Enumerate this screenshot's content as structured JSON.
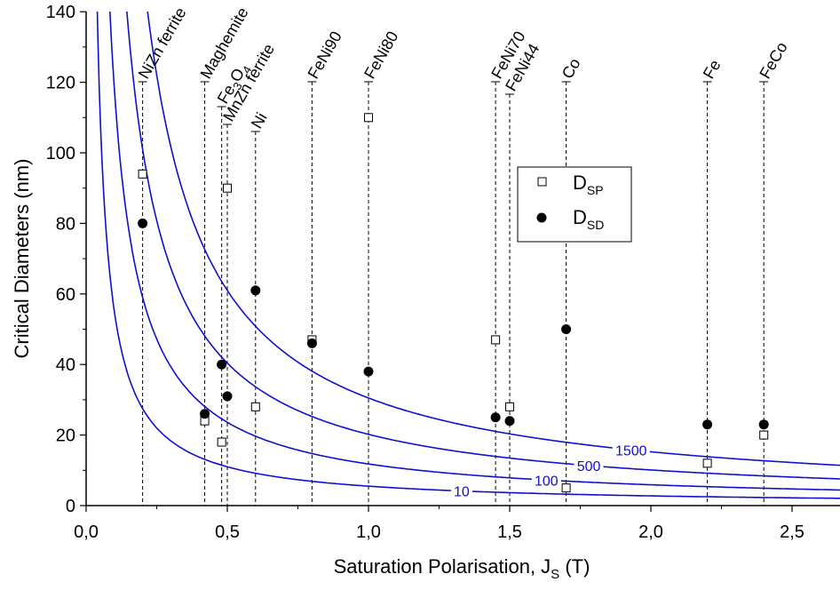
{
  "chart_data": {
    "type": "scatter",
    "xlabel": "Saturation Polarisation, J",
    "xlabel_sub": "S",
    "xlabel_unit": "(T)",
    "ylabel": "Critical Diameters (nm)",
    "xlim": [
      0.0,
      2.8
    ],
    "ylim": [
      0,
      140
    ],
    "xticks": [
      0.0,
      0.5,
      1.0,
      1.5,
      2.0,
      2.5
    ],
    "xtick_labels": [
      "0,0",
      "0,5",
      "1,0",
      "1,5",
      "2,0",
      "2,5"
    ],
    "yticks": [
      0,
      20,
      40,
      60,
      80,
      100,
      120,
      140
    ],
    "ytick_labels": [
      "0",
      "20",
      "40",
      "60",
      "80",
      "100",
      "120",
      "140"
    ],
    "legend_position": "upper-middle-right",
    "materials": [
      {
        "name": "NiZn ferrite",
        "js": 0.2
      },
      {
        "name": "Maghemite",
        "js": 0.42
      },
      {
        "name": "Fe3O4",
        "js": 0.48
      },
      {
        "name": "MnZn ferrite",
        "js": 0.5
      },
      {
        "name": "Ni",
        "js": 0.6
      },
      {
        "name": "FeNi90",
        "js": 0.8
      },
      {
        "name": "FeNi80",
        "js": 1.0
      },
      {
        "name": "FeNi70",
        "js": 1.45
      },
      {
        "name": "FeNi44",
        "js": 1.5
      },
      {
        "name": "Co",
        "js": 1.7
      },
      {
        "name": "Fe",
        "js": 2.2
      },
      {
        "name": "FeCo",
        "js": 2.4
      }
    ],
    "curves": [
      {
        "label": "10",
        "color": "#1010cc",
        "k": 5.5,
        "label_at_js": 1.33
      },
      {
        "label": "100",
        "color": "#1010cc",
        "k": 11.8,
        "label_at_js": 1.63
      },
      {
        "label": "500",
        "color": "#1010cc",
        "k": 20.2,
        "label_at_js": 1.78
      },
      {
        "label": "1500",
        "color": "#1010cc",
        "k": 30.5,
        "label_at_js": 1.93
      }
    ],
    "series": [
      {
        "name": "D",
        "name_sub": "SP",
        "marker": "open-square",
        "points": [
          [
            0.2,
            94
          ],
          [
            0.42,
            24
          ],
          [
            0.48,
            18
          ],
          [
            0.5,
            90
          ],
          [
            0.6,
            28
          ],
          [
            0.8,
            47
          ],
          [
            1.0,
            110
          ],
          [
            1.45,
            47
          ],
          [
            1.5,
            28
          ],
          [
            1.7,
            5
          ],
          [
            2.2,
            12
          ],
          [
            2.4,
            20
          ]
        ]
      },
      {
        "name": "D",
        "name_sub": "SD",
        "marker": "filled-circle",
        "points": [
          [
            0.2,
            80
          ],
          [
            0.42,
            26
          ],
          [
            0.48,
            40
          ],
          [
            0.5,
            31
          ],
          [
            0.6,
            61
          ],
          [
            0.8,
            46
          ],
          [
            1.0,
            38
          ],
          [
            1.45,
            25
          ],
          [
            1.5,
            24
          ],
          [
            1.7,
            50
          ],
          [
            2.2,
            23
          ],
          [
            2.4,
            23
          ]
        ]
      }
    ]
  }
}
